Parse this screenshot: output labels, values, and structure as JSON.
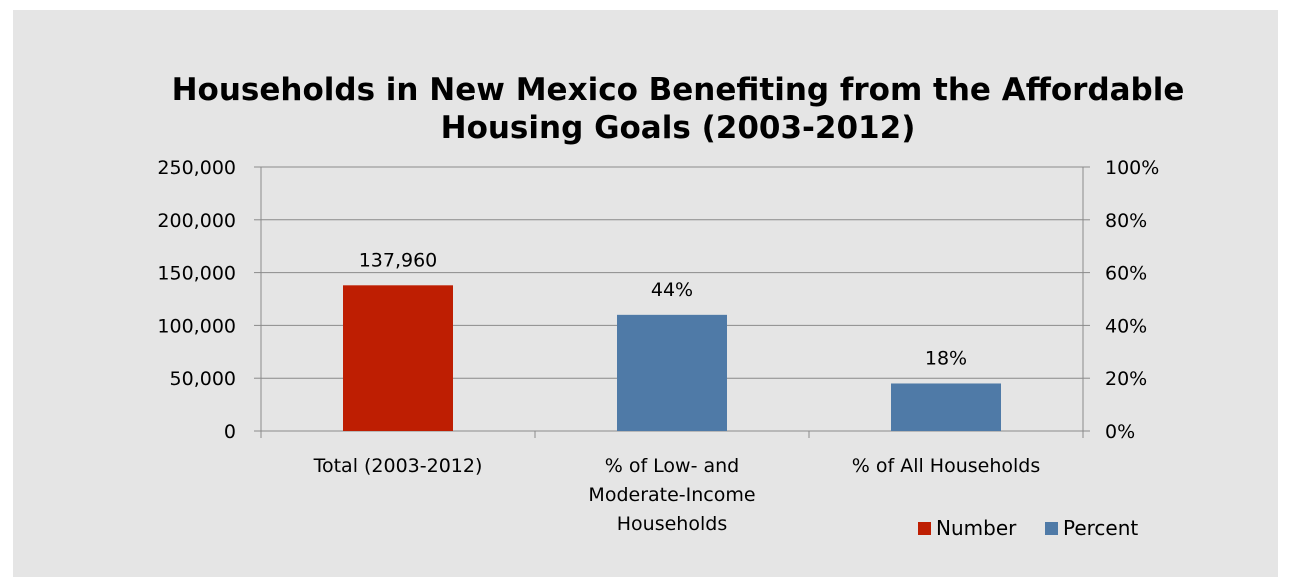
{
  "chart_data": {
    "type": "bar",
    "title": "Households in New Mexico Benefiting from the Affordable Housing Goals (2003-2012)",
    "title_lines": [
      "Households in New Mexico Benefiting from the Affordable",
      "Housing Goals (2003-2012)"
    ],
    "categories": [
      "Total (2003-2012)",
      "% of Low- and Moderate-Income Households",
      "% of All Households"
    ],
    "category_label_lines": [
      [
        "Total (2003-2012)"
      ],
      [
        "% of Low- and",
        "Moderate-Income",
        "Households"
      ],
      [
        "% of All Households"
      ]
    ],
    "series": [
      {
        "name": "Number",
        "axis": "left",
        "color": "#BE1E02",
        "values": [
          137960,
          null,
          null
        ],
        "data_labels": [
          "137,960",
          null,
          null
        ]
      },
      {
        "name": "Percent",
        "axis": "right",
        "color": "#4F7AA7",
        "values": [
          null,
          44,
          18
        ],
        "data_labels": [
          null,
          "44%",
          "18%"
        ]
      }
    ],
    "left_axis": {
      "ylim": [
        0,
        250000
      ],
      "ticks": [
        0,
        50000,
        100000,
        150000,
        200000,
        250000
      ],
      "tick_labels": [
        "0",
        "50,000",
        "100,000",
        "150,000",
        "200,000",
        "250,000"
      ]
    },
    "right_axis": {
      "ylim": [
        0,
        100
      ],
      "ticks": [
        0,
        20,
        40,
        60,
        80,
        100
      ],
      "tick_labels": [
        "0%",
        "20%",
        "40%",
        "60%",
        "80%",
        "100%"
      ]
    },
    "gridlines": true,
    "legend_position": "bottom-right",
    "xlabel": "",
    "ylabel": ""
  },
  "colors": {
    "background": "#E5E5E5",
    "plot_area": "#E5E5E5",
    "gridline": "#8A8A8A",
    "axis": "#8A8A8A"
  }
}
